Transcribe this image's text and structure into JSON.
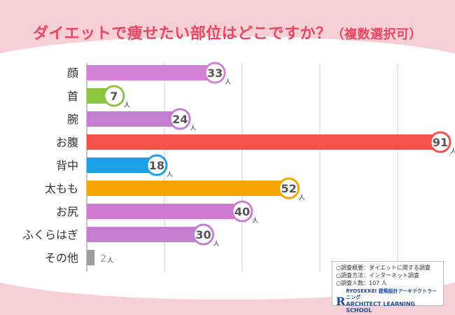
{
  "title": "ダイエットで痩せたい部位はどこですか？",
  "subtitle": "（複数選択可）",
  "unit": "人",
  "chart_data": {
    "type": "bar",
    "orientation": "horizontal",
    "title": "ダイエットで痩せたい部位はどこですか？（複数選択可）",
    "categories": [
      "顔",
      "首",
      "腕",
      "お腹",
      "背中",
      "太もも",
      "お尻",
      "ふくらはぎ",
      "その他"
    ],
    "values": [
      33,
      7,
      24,
      91,
      18,
      52,
      40,
      30,
      2
    ],
    "colors": [
      "#d480d4",
      "#8cc63f",
      "#c47fd0",
      "#f4514b",
      "#1ea0e6",
      "#f7a600",
      "#cf7cd0",
      "#c47fd0",
      "#9e9e9e"
    ],
    "xlim": [
      0,
      100
    ],
    "grid": "vertical",
    "unit": "人"
  },
  "survey": {
    "line1": "○調査概要：ダイエットに関する調査",
    "line2": "○調査方法：インターネット調査",
    "line3": "○調査人数：107 人"
  },
  "logo": {
    "mark": "R",
    "line1": "RYOSEKKEI 建築設計アーキテクトラーニング",
    "line2": "ARCHITECT LEARNING SCHOOL"
  }
}
